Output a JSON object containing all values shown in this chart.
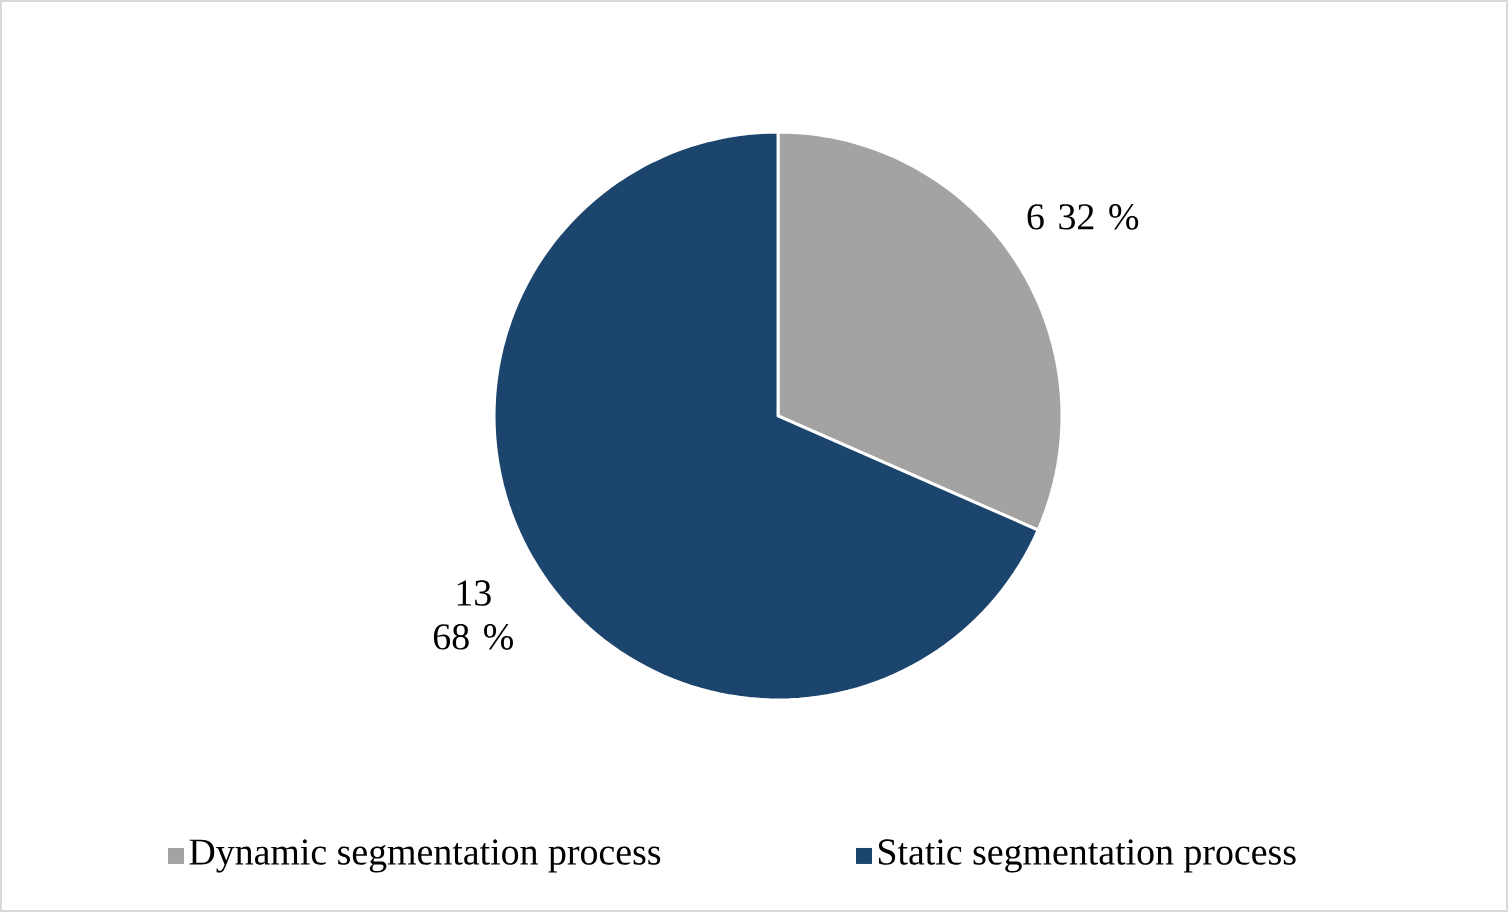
{
  "chart_data": {
    "type": "pie",
    "categories": [
      "Dynamic segmentation process",
      "Static segmentation process"
    ],
    "values": [
      6,
      13
    ],
    "colors": [
      "#a5a2a2",
      "#1b456c"
    ],
    "value_labels": [
      "6 32 %",
      "13 68 %"
    ],
    "legend": "bottom"
  }
}
